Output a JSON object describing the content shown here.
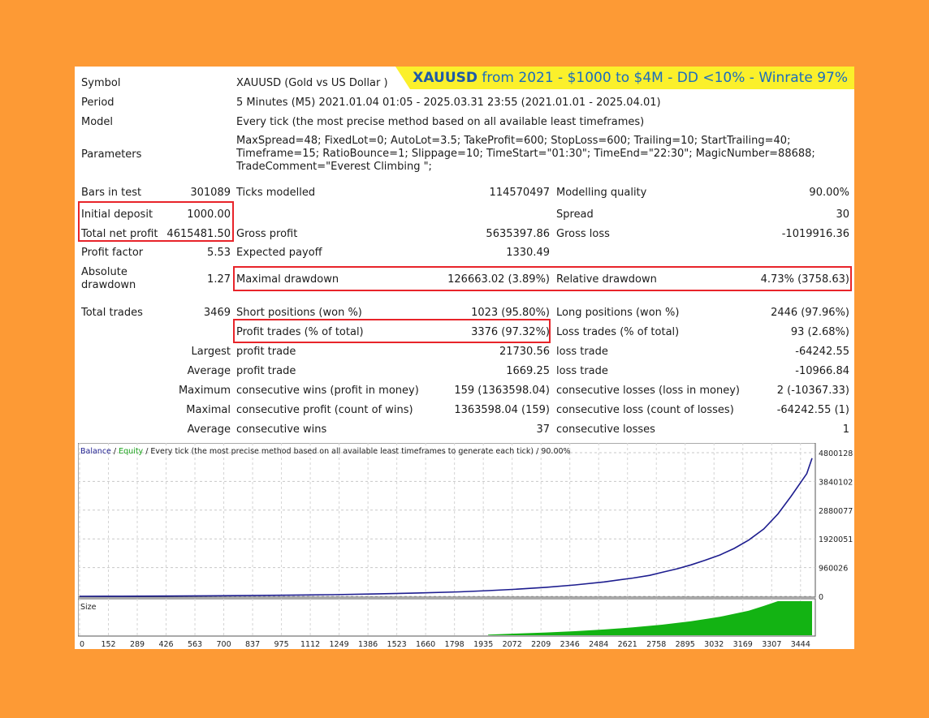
{
  "banner": {
    "symbol": "XAUUSD",
    "text": " from 2021 - $1000 to $4M - DD <10% - Winrate 97%"
  },
  "header_rows": [
    {
      "label": "Symbol",
      "value": "XAUUSD (Gold vs US Dollar )"
    },
    {
      "label": "Period",
      "value": "5 Minutes (M5) 2021.01.04 01:05 - 2025.03.31 23:55 (2021.01.01 - 2025.04.01)"
    },
    {
      "label": "Model",
      "value": "Every tick (the most precise method based on all available least timeframes)"
    },
    {
      "label": "Parameters",
      "value": "MaxSpread=48; FixedLot=0; AutoLot=3.5; TakeProfit=600; StopLoss=600; Trailing=10; StartTrailing=40; Timeframe=15; RatioBounce=1; Slippage=10; TimeStart=\"01:30\"; TimeEnd=\"22:30\"; MagicNumber=88688; TradeComment=\"Everest Climbing \";"
    }
  ],
  "stats": {
    "bars_in_test": {
      "label": "Bars in test",
      "value": "301089"
    },
    "ticks_modelled": {
      "label": "Ticks modelled",
      "value": "114570497"
    },
    "modelling_quality": {
      "label": "Modelling quality",
      "value": "90.00%"
    },
    "initial_deposit": {
      "label": "Initial deposit",
      "value": "1000.00"
    },
    "spread": {
      "label": "Spread",
      "value": "30"
    },
    "total_net_profit": {
      "label": "Total net profit",
      "value": "4615481.50"
    },
    "gross_profit": {
      "label": "Gross profit",
      "value": "5635397.86"
    },
    "gross_loss": {
      "label": "Gross loss",
      "value": "-1019916.36"
    },
    "profit_factor": {
      "label": "Profit factor",
      "value": "5.53"
    },
    "expected_payoff": {
      "label": "Expected payoff",
      "value": "1330.49"
    },
    "absolute_drawdown": {
      "label": "Absolute drawdown",
      "value": "1.27"
    },
    "maximal_drawdown": {
      "label": "Maximal drawdown",
      "value": "126663.02 (3.89%)"
    },
    "relative_drawdown": {
      "label": "Relative drawdown",
      "value": "4.73% (3758.63)"
    },
    "total_trades": {
      "label": "Total trades",
      "value": "3469"
    },
    "short_positions": {
      "label": "Short positions (won %)",
      "value": "1023 (95.80%)"
    },
    "long_positions": {
      "label": "Long positions (won %)",
      "value": "2446 (97.96%)"
    },
    "profit_trades": {
      "label": "Profit trades (% of total)",
      "value": "3376 (97.32%)"
    },
    "loss_trades": {
      "label": "Loss trades (% of total)",
      "value": "93 (2.68%)"
    }
  },
  "trade_rows": [
    {
      "prefix": "Largest",
      "profit_label": "profit trade",
      "profit_value": "21730.56",
      "loss_label": "loss trade",
      "loss_value": "-64242.55"
    },
    {
      "prefix": "Average",
      "profit_label": "profit trade",
      "profit_value": "1669.25",
      "loss_label": "loss trade",
      "loss_value": "-10966.84"
    },
    {
      "prefix": "Maximum",
      "profit_label": "consecutive wins (profit in money)",
      "profit_value": "159 (1363598.04)",
      "loss_label": "consecutive losses (loss in money)",
      "loss_value": "2 (-10367.33)"
    },
    {
      "prefix": "Maximal",
      "profit_label": "consecutive profit (count of wins)",
      "profit_value": "1363598.04 (159)",
      "loss_label": "consecutive loss (count of losses)",
      "loss_value": "-64242.55 (1)"
    },
    {
      "prefix": "Average",
      "profit_label": "consecutive wins",
      "profit_value": "37",
      "loss_label": "consecutive losses",
      "loss_value": "1"
    }
  ],
  "chart_data": {
    "type": "line",
    "legend": {
      "balance": "Balance",
      "sep1": " / ",
      "equity": "Equity",
      "rest": " / Every tick (the most precise method based on all available least timeframes to generate each tick) / 90.00%"
    },
    "y_ticks": [
      "4800128",
      "3840102",
      "2880077",
      "1920051",
      "960026",
      "0"
    ],
    "y_tick_values": [
      4800128,
      3840102,
      2880077,
      1920051,
      960026,
      0
    ],
    "ylim": [
      0,
      4800128
    ],
    "x_ticks": [
      "0",
      "152",
      "289",
      "426",
      "563",
      "700",
      "837",
      "975",
      "1112",
      "1249",
      "1386",
      "1523",
      "1660",
      "1798",
      "1935",
      "2072",
      "2209",
      "2346",
      "2484",
      "2621",
      "2758",
      "2895",
      "3032",
      "3169",
      "3307",
      "3444"
    ],
    "xlim": [
      0,
      3469
    ],
    "balance_color": "#1d1d8f",
    "equity_color": "#1aa31a",
    "series": [
      {
        "name": "Balance",
        "x": [
          0,
          200,
          400,
          600,
          800,
          1000,
          1200,
          1400,
          1600,
          1800,
          1935,
          2072,
          2209,
          2346,
          2484,
          2621,
          2700,
          2758,
          2830,
          2895,
          2960,
          3032,
          3100,
          3169,
          3240,
          3307,
          3370,
          3444,
          3469
        ],
        "y": [
          1000,
          3000,
          8000,
          15000,
          25000,
          38000,
          55000,
          80000,
          110000,
          150000,
          190000,
          240000,
          300000,
          380000,
          480000,
          610000,
          700000,
          800000,
          920000,
          1050000,
          1200000,
          1380000,
          1600000,
          1880000,
          2250000,
          2750000,
          3350000,
          4100000,
          4616481
        ]
      }
    ],
    "size_panel": {
      "label": "Size",
      "color": "#13b313",
      "x": [
        1935,
        2072,
        2209,
        2346,
        2484,
        2621,
        2758,
        2895,
        3032,
        3169,
        3240,
        3307,
        3469
      ],
      "y": [
        0.02,
        0.05,
        0.08,
        0.12,
        0.17,
        0.23,
        0.31,
        0.41,
        0.54,
        0.72,
        0.86,
        1.0,
        1.0
      ]
    }
  }
}
